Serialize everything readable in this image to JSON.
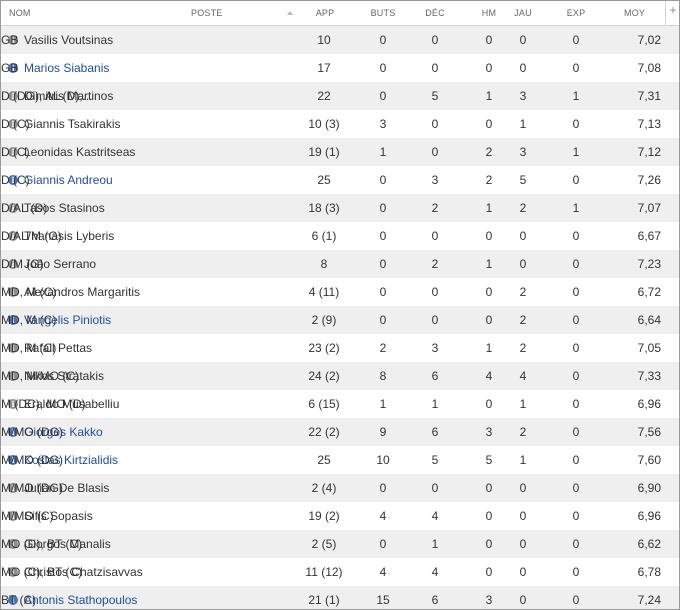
{
  "headers": {
    "nom": "NOM",
    "poste": "POSTE",
    "app": "APP",
    "buts": "BUTS",
    "dec": "DÉC",
    "hm": "HM",
    "jau": "JAU",
    "exp": "EXP",
    "moy": "MOY",
    "add": "+"
  },
  "players": [
    {
      "name": "Vasilis Voutsinas",
      "linked": false,
      "poste": "GB",
      "app": "10",
      "buts": "0",
      "dec": "0",
      "hm": "0",
      "jau": "0",
      "exp": "0",
      "moy": "7,02"
    },
    {
      "name": "Marios Siabanis",
      "linked": true,
      "poste": "GB",
      "app": "17",
      "buts": "0",
      "dec": "0",
      "hm": "0",
      "jau": "0",
      "exp": "0",
      "moy": "7,08"
    },
    {
      "name": "Dimitris Martinos",
      "linked": false,
      "poste": "D (DG), AL (D),...",
      "app": "22",
      "buts": "0",
      "dec": "5",
      "hm": "1",
      "jau": "3",
      "exp": "1",
      "moy": "7,31"
    },
    {
      "name": "Giannis Tsakirakis",
      "linked": false,
      "poste": "D (C)",
      "app": "10 (3)",
      "buts": "3",
      "dec": "0",
      "hm": "0",
      "jau": "1",
      "exp": "0",
      "moy": "7,13"
    },
    {
      "name": "Leonidas Kastritseas",
      "linked": false,
      "poste": "D (C)",
      "app": "19 (1)",
      "buts": "1",
      "dec": "0",
      "hm": "2",
      "jau": "3",
      "exp": "1",
      "moy": "7,12"
    },
    {
      "name": "Giannis Andreou",
      "linked": true,
      "poste": "D (C)",
      "app": "25",
      "buts": "0",
      "dec": "3",
      "hm": "2",
      "jau": "5",
      "exp": "0",
      "moy": "7,26"
    },
    {
      "name": "Tasos Stasinos",
      "linked": false,
      "poste": "D/AL (D)",
      "app": "18 (3)",
      "buts": "0",
      "dec": "2",
      "hm": "1",
      "jau": "2",
      "exp": "1",
      "moy": "7,07"
    },
    {
      "name": "Thanasis Lyberis",
      "linked": false,
      "poste": "D/AL/M (G)",
      "app": "6 (1)",
      "buts": "0",
      "dec": "0",
      "hm": "0",
      "jau": "0",
      "exp": "0",
      "moy": "6,67"
    },
    {
      "name": "João Serrano",
      "linked": false,
      "poste": "D/M (G)",
      "app": "8",
      "buts": "0",
      "dec": "2",
      "hm": "1",
      "jau": "0",
      "exp": "0",
      "moy": "7,23"
    },
    {
      "name": "Alexandros Margaritis",
      "linked": false,
      "poste": "MD, M (C)",
      "app": "4 (11)",
      "buts": "0",
      "dec": "0",
      "hm": "0",
      "jau": "2",
      "exp": "0",
      "moy": "6,72"
    },
    {
      "name": "Vangelis Piniotis",
      "linked": true,
      "poste": "MD, M (C)",
      "app": "2 (9)",
      "buts": "0",
      "dec": "0",
      "hm": "0",
      "jau": "2",
      "exp": "0",
      "moy": "6,64"
    },
    {
      "name": "Rafail Pettas",
      "linked": false,
      "poste": "MD, M (C)",
      "app": "23 (2)",
      "buts": "2",
      "dec": "3",
      "hm": "1",
      "jau": "2",
      "exp": "0",
      "moy": "7,05"
    },
    {
      "name": "Nikos Stratakis",
      "linked": false,
      "poste": "MD, M/MO (C)",
      "app": "24 (2)",
      "buts": "8",
      "dec": "6",
      "hm": "4",
      "jau": "4",
      "exp": "0",
      "moy": "7,33"
    },
    {
      "name": "Eraldo Musabelliu",
      "linked": false,
      "poste": "M (DC), MO (D)",
      "app": "6 (15)",
      "buts": "1",
      "dec": "1",
      "hm": "0",
      "jau": "1",
      "exp": "0",
      "moy": "6,96"
    },
    {
      "name": "Giorgos Kakko",
      "linked": true,
      "poste": "M/MO (DG)",
      "app": "22 (2)",
      "buts": "9",
      "dec": "6",
      "hm": "3",
      "jau": "2",
      "exp": "0",
      "moy": "7,56"
    },
    {
      "name": "Kostas Kirtzialidis",
      "linked": true,
      "poste": "M/MO (DG)",
      "app": "25",
      "buts": "10",
      "dec": "5",
      "hm": "5",
      "jau": "1",
      "exp": "0",
      "moy": "7,60"
    },
    {
      "name": "Julián De Blasis",
      "linked": false,
      "poste": "M/MO (DG)",
      "app": "2 (4)",
      "buts": "0",
      "dec": "0",
      "hm": "0",
      "jau": "0",
      "exp": "0",
      "moy": "6,90"
    },
    {
      "name": "Sifis Sopasis",
      "linked": false,
      "poste": "M/MO (C)",
      "app": "19 (2)",
      "buts": "4",
      "dec": "4",
      "hm": "0",
      "jau": "0",
      "exp": "0",
      "moy": "6,96"
    },
    {
      "name": "Giorgos Manalis",
      "linked": false,
      "poste": "MO (D), BT (C)",
      "app": "2 (5)",
      "buts": "0",
      "dec": "1",
      "hm": "0",
      "jau": "0",
      "exp": "0",
      "moy": "6,62"
    },
    {
      "name": "Christos Chatzisavvas",
      "linked": false,
      "poste": "MO (C), BT (C)",
      "app": "11 (12)",
      "buts": "4",
      "dec": "4",
      "hm": "0",
      "jau": "0",
      "exp": "0",
      "moy": "6,78"
    },
    {
      "name": "Antonis Stathopoulos",
      "linked": true,
      "poste": "BT (C)",
      "app": "21 (1)",
      "buts": "15",
      "dec": "6",
      "hm": "3",
      "jau": "0",
      "exp": "0",
      "moy": "7,24"
    }
  ]
}
